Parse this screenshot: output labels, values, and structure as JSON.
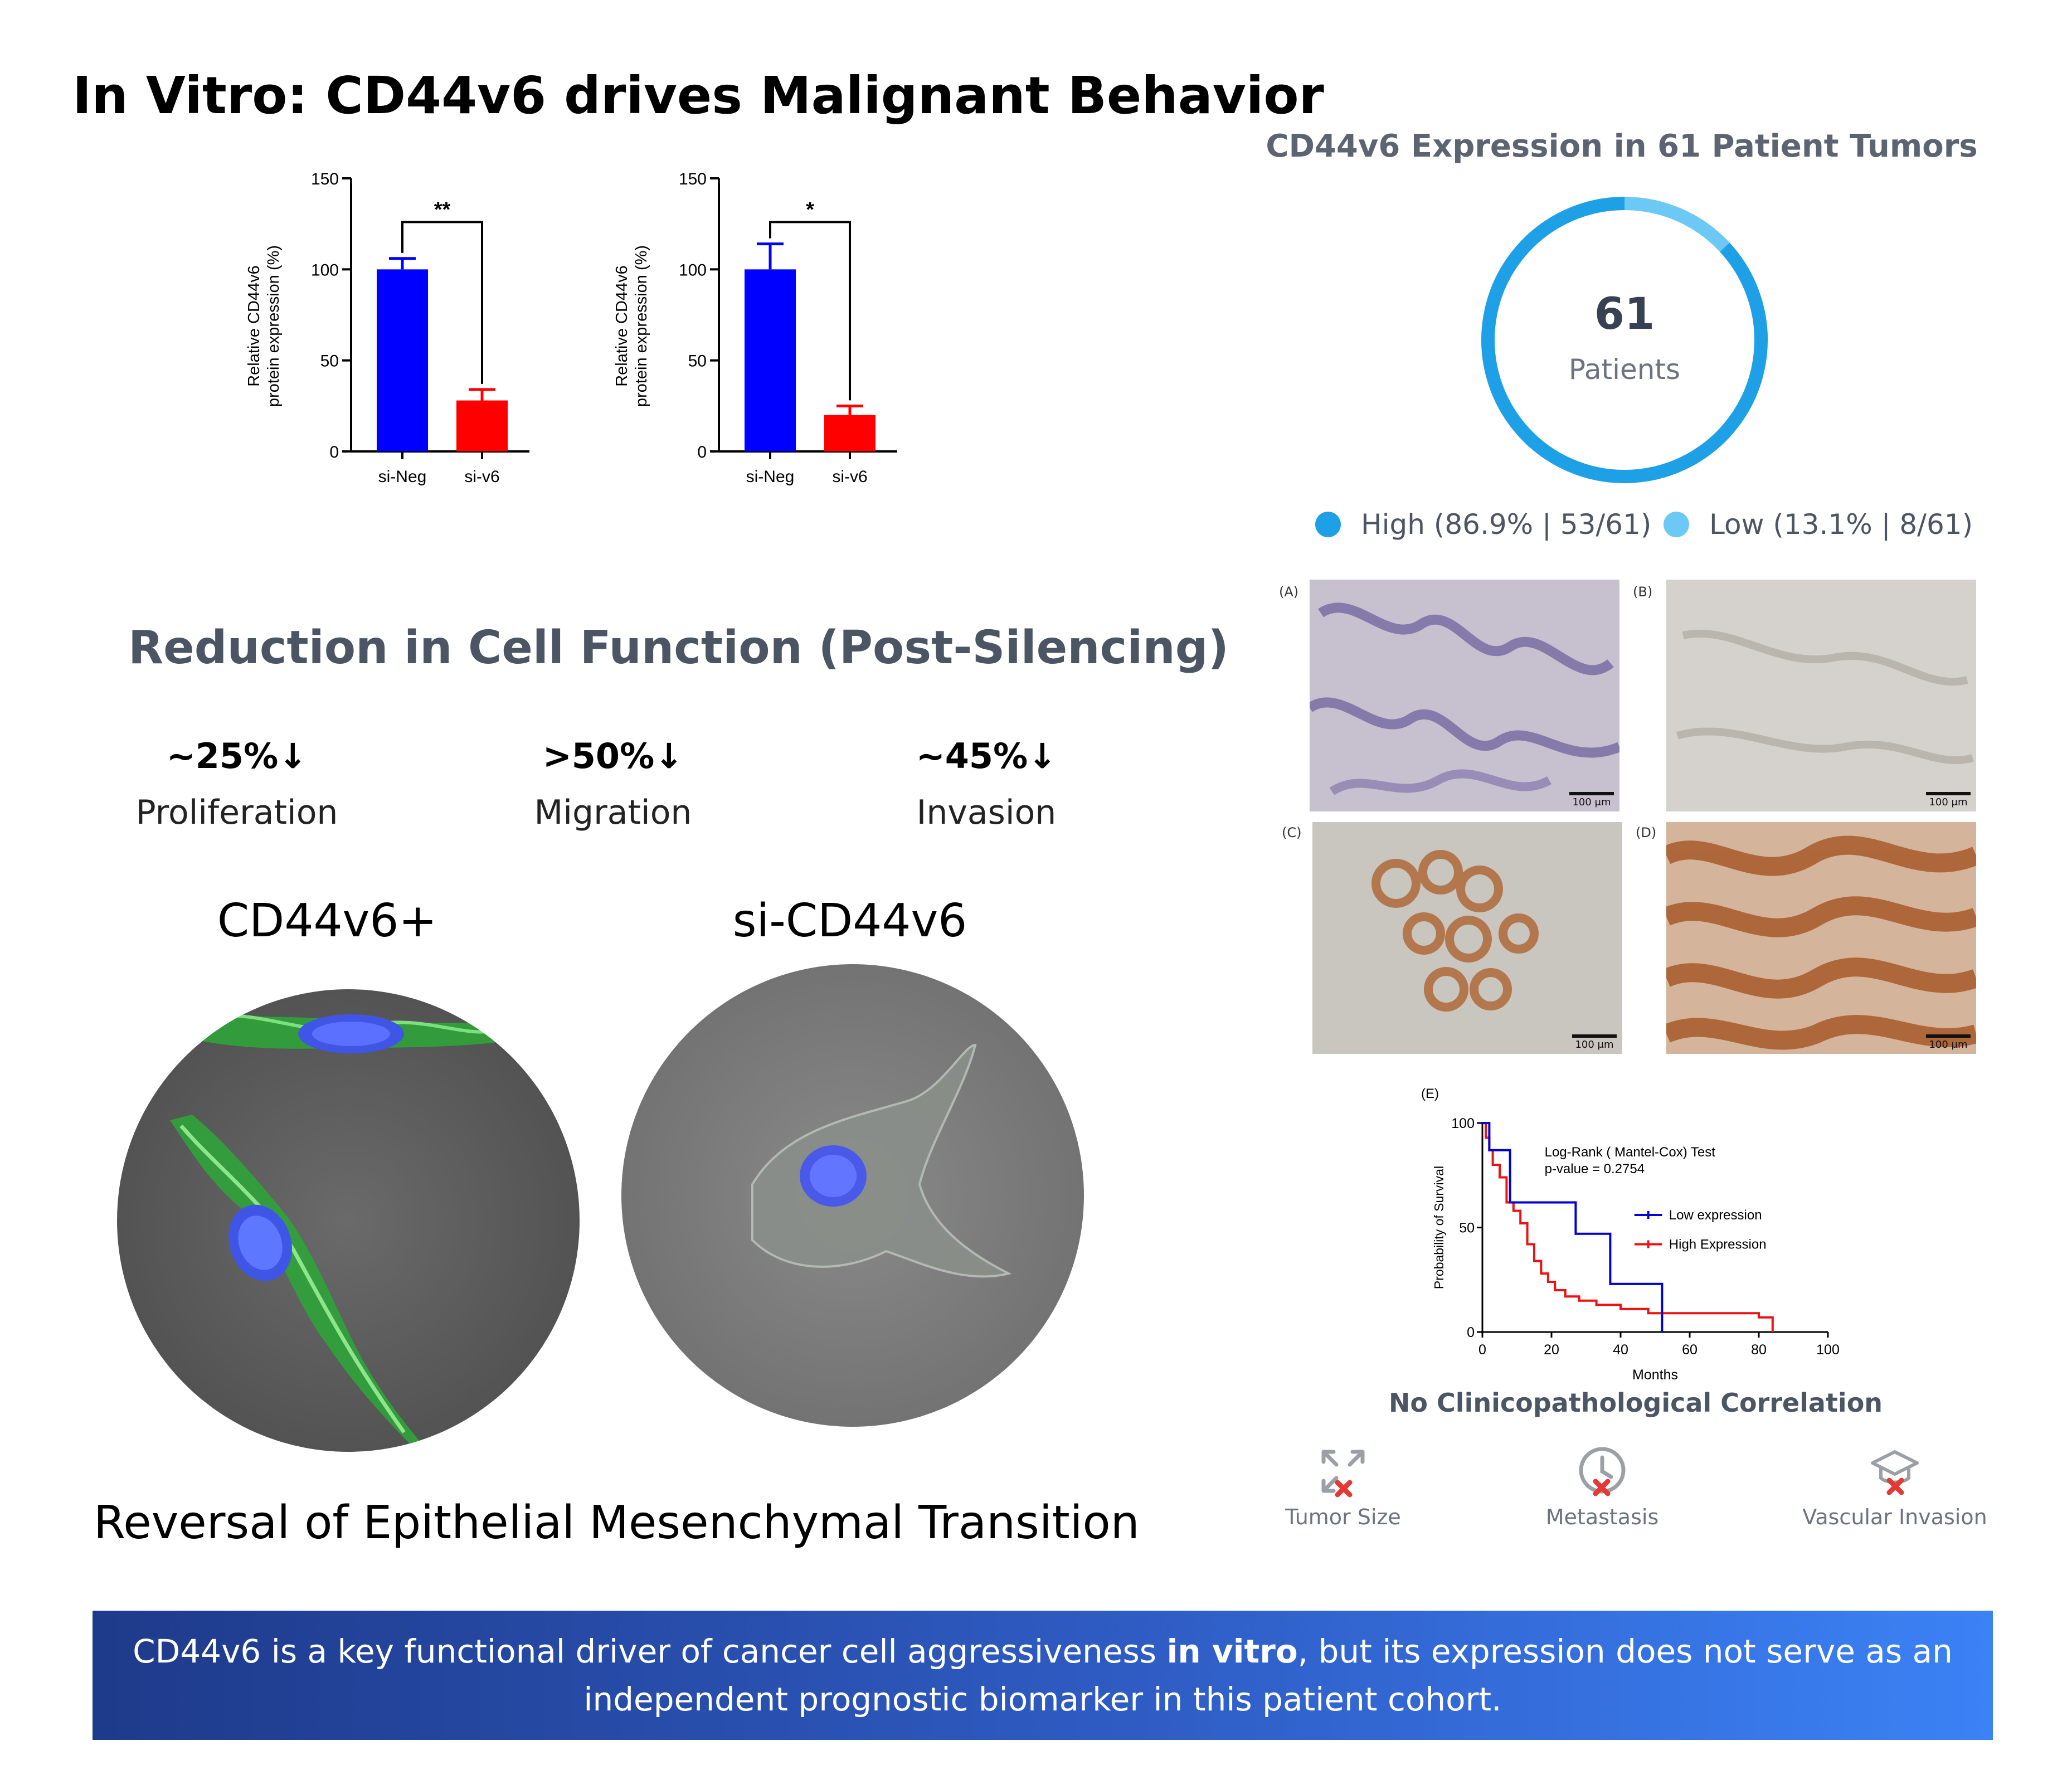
{
  "title": "In Vitro: CD44v6 drives Malignant Behavior",
  "chart_data": [
    {
      "type": "bar",
      "categories": [
        "si-Neg",
        "si-v6"
      ],
      "values": [
        100,
        28
      ],
      "errors": [
        6,
        6
      ],
      "ylabel_line1": "Relative CD44v6",
      "ylabel_line2": "protein expression (%)",
      "ylim": [
        0,
        150
      ],
      "yticks": [
        "0",
        "50",
        "100",
        "150"
      ],
      "significance": "**",
      "colors": [
        "#0000ff",
        "#ff0000"
      ]
    },
    {
      "type": "bar",
      "categories": [
        "si-Neg",
        "si-v6"
      ],
      "values": [
        100,
        20
      ],
      "errors": [
        14,
        5
      ],
      "ylabel_line1": "Relative CD44v6",
      "ylabel_line2": "protein expression (%)",
      "ylim": [
        0,
        150
      ],
      "yticks": [
        "0",
        "50",
        "100",
        "150"
      ],
      "significance": "*",
      "colors": [
        "#0000ff",
        "#ff0000"
      ]
    },
    {
      "type": "pie",
      "title": "CD44v6 Expression in 61 Patient Tumors",
      "center_value": "61",
      "center_label": "Patients",
      "slices": [
        {
          "label": "High (86.9% | 53/61)",
          "value": 53,
          "color": "#1ea0e6"
        },
        {
          "label": "Low (13.1% | 8/61)",
          "value": 8,
          "color": "#6cc8f5"
        }
      ]
    },
    {
      "type": "line",
      "panel_label": "(E)",
      "xlabel": "Months",
      "ylabel": "Probability of Survival",
      "xlim": [
        0,
        100
      ],
      "ylim": [
        0,
        100
      ],
      "xticks": [
        "0",
        "20",
        "40",
        "60",
        "80",
        "100"
      ],
      "yticks": [
        "0",
        "50",
        "100"
      ],
      "annotation_line1": "Log-Rank ( Mantel-Cox) Test",
      "annotation_line2": "p-value = 0.2754",
      "series": [
        {
          "name": "Low expression",
          "color": "#0000dd",
          "x": [
            0,
            2,
            2,
            8,
            8,
            27,
            27,
            37,
            37,
            52,
            52
          ],
          "y": [
            100,
            100,
            87,
            87,
            62,
            62,
            47,
            47,
            23,
            23,
            0
          ]
        },
        {
          "name": "High Expression",
          "color": "#ee1111",
          "x": [
            0,
            1,
            1,
            2,
            2,
            3,
            3,
            5,
            5,
            7,
            7,
            9,
            9,
            11,
            11,
            13,
            13,
            15,
            15,
            17,
            17,
            19,
            19,
            21,
            21,
            24,
            24,
            28,
            28,
            33,
            33,
            40,
            40,
            48,
            48,
            80,
            80,
            84,
            84
          ],
          "y": [
            100,
            100,
            93,
            93,
            87,
            87,
            80,
            80,
            74,
            74,
            62,
            62,
            58,
            58,
            52,
            52,
            42,
            42,
            34,
            34,
            28,
            28,
            24,
            24,
            20,
            20,
            17,
            17,
            15,
            15,
            13,
            13,
            11,
            11,
            9,
            9,
            7,
            7,
            0
          ]
        }
      ]
    }
  ],
  "stats_title": "Reduction in Cell Function (Post-Silencing)",
  "stats": [
    {
      "value": "~25%↓",
      "label": "Proliferation",
      "color": "#2e7d5b"
    },
    {
      "value": ">50%↓",
      "label": "Migration",
      "color": "#8b5a2b"
    },
    {
      "value": "~45%↓",
      "label": "Invasion",
      "color": "#b3262d"
    }
  ],
  "cells": [
    {
      "label": "CD44v6+"
    },
    {
      "label": "si-CD44v6"
    }
  ],
  "emt_caption": "Reversal of Epithelial Mesenchymal Transition",
  "histology": [
    {
      "label": "(A)",
      "scale": "100 μm"
    },
    {
      "label": "(B)",
      "scale": "100 μm"
    },
    {
      "label": "(C)",
      "scale": "100 μm"
    },
    {
      "label": "(D)",
      "scale": "100 μm"
    }
  ],
  "no_corr_title": "No Clinicopathological Correlation",
  "risk_factors": [
    {
      "label": "Tumor Size",
      "icon": "expand-arrows-icon"
    },
    {
      "label": "Metastasis",
      "icon": "clock-icon"
    },
    {
      "label": "Vascular Invasion",
      "icon": "graduation-cap-icon"
    }
  ],
  "banner": {
    "part1": "CD44v6 is a key functional driver of cancer cell aggressiveness ",
    "bold": "in vitro",
    "part2": ", but its expression does not serve as an",
    "line2": "independent prognostic biomarker in this patient cohort."
  }
}
